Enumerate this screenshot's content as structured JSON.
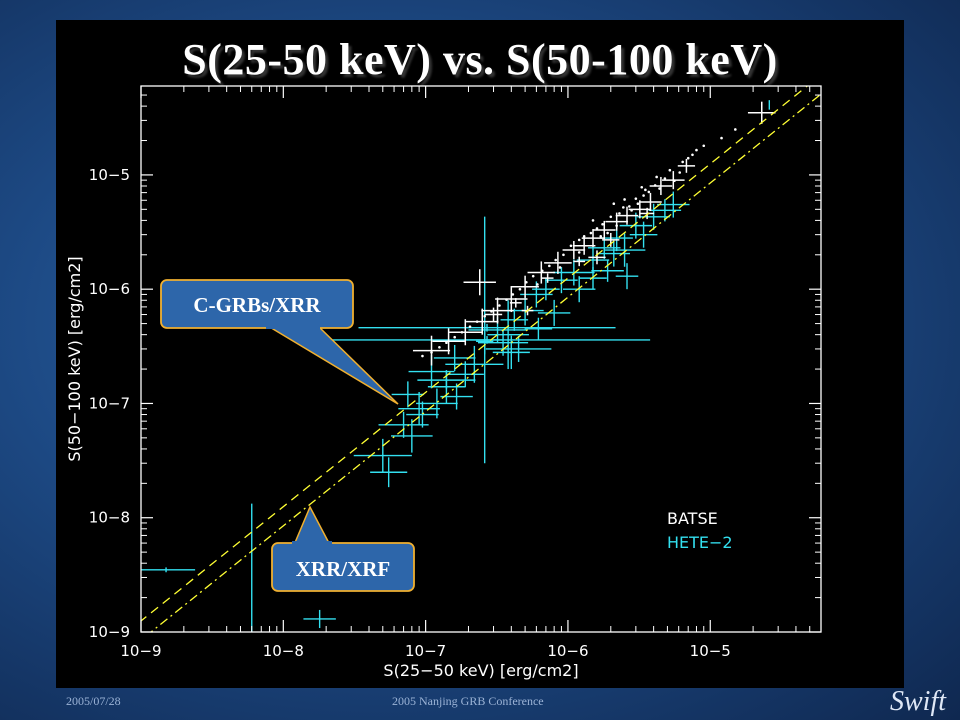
{
  "slide": {
    "title": "S(25-50 keV) vs. S(50-100 keV)",
    "footer_left": "2005/07/28",
    "footer_center": "2005 Nanjing GRB Conference",
    "logo_text": "Swift"
  },
  "callouts": {
    "upper": "C-GRBs/XRR",
    "lower": "XRR/XRF"
  },
  "colors": {
    "batse": "#ffffff",
    "hete2": "#33e0f0",
    "reference_lines": "#ffff33",
    "callout_fill": "#2d66aa",
    "callout_border": "#f0b030"
  },
  "chart_data": {
    "type": "scatter",
    "scale": "log-log",
    "xlabel": "S(25−50 keV) [erg/cm2]",
    "ylabel": "S(50−100 keV) [erg/cm2]",
    "xlim": [
      1e-09,
      6e-05
    ],
    "ylim": [
      1e-09,
      6e-05
    ],
    "x_ticks": [
      "10−9",
      "10−8",
      "10−7",
      "10−6",
      "10−5"
    ],
    "y_ticks": [
      "10−9",
      "10−8",
      "10−7",
      "10−6",
      "10−5"
    ],
    "legend": {
      "position": "lower-right",
      "entries": [
        "BATSE",
        "HETE−2"
      ]
    },
    "series": [
      {
        "name": "BATSE",
        "points": [
          [
            2.3e-05,
            3.5e-05,
            1.25
          ],
          [
            5.5e-06,
            9e-06,
            1.2
          ],
          [
            4.5e-06,
            8e-06,
            1.2
          ],
          [
            3.8e-06,
            5.8e-06,
            1.2
          ],
          [
            3.2e-06,
            5e-06,
            1.2
          ],
          [
            2.6e-06,
            4.4e-06,
            1.2
          ],
          [
            2.2e-06,
            3.9e-06,
            1.2
          ],
          [
            1.8e-06,
            3.3e-06,
            1.2
          ],
          [
            1.5e-06,
            2.8e-06,
            1.2
          ],
          [
            1.3e-06,
            2.4e-06,
            1.2
          ],
          [
            1.1e-06,
            2.2e-06,
            1.2
          ],
          [
            8.5e-07,
            1.7e-06,
            1.25
          ],
          [
            6.5e-07,
            1.4e-06,
            1.25
          ],
          [
            5e-07,
            1.05e-06,
            1.25
          ],
          [
            4e-07,
            8.2e-07,
            1.3
          ],
          [
            3.2e-07,
            6.5e-07,
            1.3
          ],
          [
            2.5e-07,
            5.2e-07,
            1.3
          ],
          [
            1.9e-07,
            4.2e-07,
            1.3
          ],
          [
            1.45e-07,
            3.5e-07,
            1.3
          ],
          [
            1.1e-07,
            2.9e-07,
            1.35
          ],
          [
            2.4e-07,
            1.15e-06,
            1.3
          ],
          [
            3e-07,
            6e-07,
            1.15
          ],
          [
            4.3e-07,
            7.6e-07,
            1.1
          ],
          [
            6.8e-06,
            1.2e-05,
            1.15
          ],
          [
            1.6e-06,
            1.9e-06,
            1.15
          ],
          [
            2e-06,
            2.7e-06,
            1.15
          ],
          [
            1.2e-06,
            1.75e-06,
            1.1
          ],
          [
            7.2e-07,
            1.25e-06,
            1.1
          ],
          [
            3.6e-06,
            4.6e-06,
            1.12
          ],
          [
            5.2e-07,
            6.5e-07,
            1.1
          ]
        ],
        "dots": [
          [
            7.5e-06,
            1.5e-05
          ],
          [
            6.4e-06,
            1.3e-05
          ],
          [
            5.2e-06,
            1.1e-05
          ],
          [
            4.8e-06,
            9.3e-06
          ],
          [
            4.1e-06,
            8.1e-06
          ],
          [
            3.7e-06,
            7.1e-06
          ],
          [
            3.4e-06,
            6.6e-06
          ],
          [
            3e-06,
            6.2e-06
          ],
          [
            2.7e-06,
            5.3e-06
          ],
          [
            2.45e-06,
            5.2e-06
          ],
          [
            2.3e-06,
            4.6e-06
          ],
          [
            2e-06,
            4.3e-06
          ],
          [
            1.75e-06,
            3.7e-06
          ],
          [
            1.6e-06,
            3.4e-06
          ],
          [
            1.45e-06,
            3.1e-06
          ],
          [
            1.3e-06,
            2.9e-06
          ],
          [
            1.2e-06,
            2.7e-06
          ],
          [
            1.05e-06,
            2.4e-06
          ],
          [
            9.3e-07,
            2e-06
          ],
          [
            8.2e-07,
            1.8e-06
          ],
          [
            7.4e-07,
            1.6e-06
          ],
          [
            6.6e-07,
            1.45e-06
          ],
          [
            5.7e-07,
            1.3e-06
          ],
          [
            5.1e-07,
            1.15e-06
          ],
          [
            4.6e-07,
            1e-06
          ],
          [
            4.1e-07,
            9e-07
          ],
          [
            3.7e-07,
            8.1e-07
          ],
          [
            3.3e-07,
            7.2e-07
          ],
          [
            2.9e-07,
            6.4e-07
          ],
          [
            2.6e-07,
            5.8e-07
          ],
          [
            2.3e-07,
            5.2e-07
          ],
          [
            2.05e-07,
            4.7e-07
          ],
          [
            1.8e-07,
            4.2e-07
          ],
          [
            1.6e-07,
            3.8e-07
          ],
          [
            1.4e-07,
            3.4e-07
          ],
          [
            1.25e-07,
            3.1e-07
          ],
          [
            1.1e-07,
            2.8e-07
          ],
          [
            9.5e-08,
            2.6e-07
          ],
          [
            9e-06,
            1.8e-05
          ],
          [
            1.2e-05,
            2.1e-05
          ],
          [
            8e-06,
            1.65e-05
          ],
          [
            4.4e-06,
            7.6e-06
          ],
          [
            3.1e-06,
            5.6e-06
          ],
          [
            2.2e-06,
            3.6e-06
          ],
          [
            1.7e-06,
            2.9e-06
          ],
          [
            1.2e-06,
            2.1e-06
          ],
          [
            8.8e-07,
            1.55e-06
          ],
          [
            6.1e-07,
            1.1e-06
          ],
          [
            3.3e-06,
            7.8e-06
          ],
          [
            2.1e-06,
            5.6e-06
          ],
          [
            2.5e-06,
            6.1e-06
          ],
          [
            1.5e-06,
            4e-06
          ],
          [
            4.2e-06,
            9.6e-06
          ],
          [
            1.5e-05,
            2.5e-05
          ],
          [
            2.8e-06,
            4.9e-06
          ],
          [
            1.9e-06,
            3.1e-06
          ],
          [
            5.6e-06,
            8.9e-06
          ],
          [
            6.1e-06,
            1.05e-05
          ],
          [
            7e-06,
            1.4e-05
          ],
          [
            3.5e-06,
            7.4e-06
          ]
        ]
      },
      {
        "name": "HETE−2",
        "points": [
          [
            1.8e-08,
            1.3e-09,
            1.3,
            1.2
          ],
          [
            6e-09,
            3.5e-09,
            1.0,
            3.8
          ],
          [
            1.5e-09,
            3.5e-09,
            1.6,
            1.05
          ],
          [
            5.5e-08,
            2.5e-08,
            1.35,
            1.35
          ],
          [
            5e-08,
            3.5e-08,
            1.6,
            1.4
          ],
          [
            8e-08,
            5.2e-08,
            1.4,
            1.4
          ],
          [
            7e-08,
            6.5e-08,
            1.5,
            1.3
          ],
          [
            9e-08,
            9e-08,
            1.4,
            1.4
          ],
          [
            1.2e-07,
            1e-07,
            1.4,
            1.35
          ],
          [
            1.4e-07,
            1.4e-07,
            1.35,
            1.4
          ],
          [
            1.1e-07,
            1.9e-07,
            1.45,
            1.4
          ],
          [
            1.6e-07,
            2.5e-07,
            1.4,
            1.3
          ],
          [
            1.9e-07,
            1.8e-07,
            1.35,
            1.3
          ],
          [
            2.2e-07,
            2.2e-07,
            1.6,
            1.45
          ],
          [
            2.6e-07,
            3.6e-07,
            1.35,
            12.0
          ],
          [
            2.6e-07,
            3.5e-07,
            1.15,
            1.3
          ],
          [
            3.2e-07,
            4.4e-07,
            1.6,
            1.3
          ],
          [
            4e-07,
            2.8e-07,
            1.35,
            1.4
          ],
          [
            4.2e-07,
            5.4e-07,
            1.25,
            1.25
          ],
          [
            5e-07,
            6.5e-07,
            1.35,
            1.35
          ],
          [
            4.5e-07,
            3e-07,
            1.7,
            1.3
          ],
          [
            6e-07,
            9e-07,
            1.3,
            1.3
          ],
          [
            7e-07,
            1e-06,
            1.25,
            1.25
          ],
          [
            9e-07,
            1.2e-06,
            1.3,
            1.3
          ],
          [
            1.1e-06,
            1.4e-06,
            1.4,
            1.3
          ],
          [
            1.5e-06,
            1.8e-06,
            1.3,
            1.3
          ],
          [
            1.8e-06,
            2.3e-06,
            1.3,
            1.25
          ],
          [
            2.2e-06,
            2.8e-06,
            1.3,
            1.3
          ],
          [
            2.5e-06,
            2.2e-06,
            1.4,
            1.4
          ],
          [
            3e-06,
            3.6e-06,
            1.3,
            1.3
          ],
          [
            4e-06,
            4.3e-06,
            1.3,
            1.3
          ],
          [
            5.5e-06,
            5.5e-06,
            1.3,
            1.3
          ],
          [
            2.6e-05,
            4.1e-05,
            1.0,
            1.1
          ],
          [
            2.6e-06,
            1.3e-06,
            1.2,
            1.3
          ],
          [
            1.9e-06,
            1.45e-06,
            1.3,
            1.25
          ],
          [
            1.5e-06,
            1.25e-06,
            1.25,
            1.25
          ],
          [
            8e-07,
            6.2e-07,
            1.3,
            1.3
          ],
          [
            6.2e-07,
            4.5e-07,
            1.25,
            1.25
          ],
          [
            3.8e-07,
            4e-07,
            1.4,
            2.0
          ],
          [
            9.5e-08,
            8e-08,
            1.3,
            1.3
          ],
          [
            2.7e-07,
            4.6e-07,
            8.0,
            1.08
          ],
          [
            2.7e-07,
            3.6e-07,
            14.0,
            1.08
          ],
          [
            1.4e-07,
            1.6e-07,
            1.6,
            1.2
          ],
          [
            3.5e-07,
            3.4e-07,
            1.5,
            1.3
          ],
          [
            1.2e-06,
            1e-06,
            1.3,
            1.3
          ],
          [
            4.8e-06,
            4.9e-06,
            1.3,
            1.25
          ],
          [
            3.4e-06,
            3e-06,
            1.25,
            1.3
          ],
          [
            7.5e-08,
            1.2e-07,
            1.3,
            1.3
          ],
          [
            1.65e-07,
            1.15e-07,
            1.3,
            1.3
          ],
          [
            2.1e-06,
            2.05e-06,
            1.3,
            1.3
          ]
        ]
      }
    ],
    "reference_lines": [
      {
        "style": "dashed",
        "ratio": 1.25
      },
      {
        "style": "dash-dot",
        "ratio": 0.85
      }
    ]
  }
}
